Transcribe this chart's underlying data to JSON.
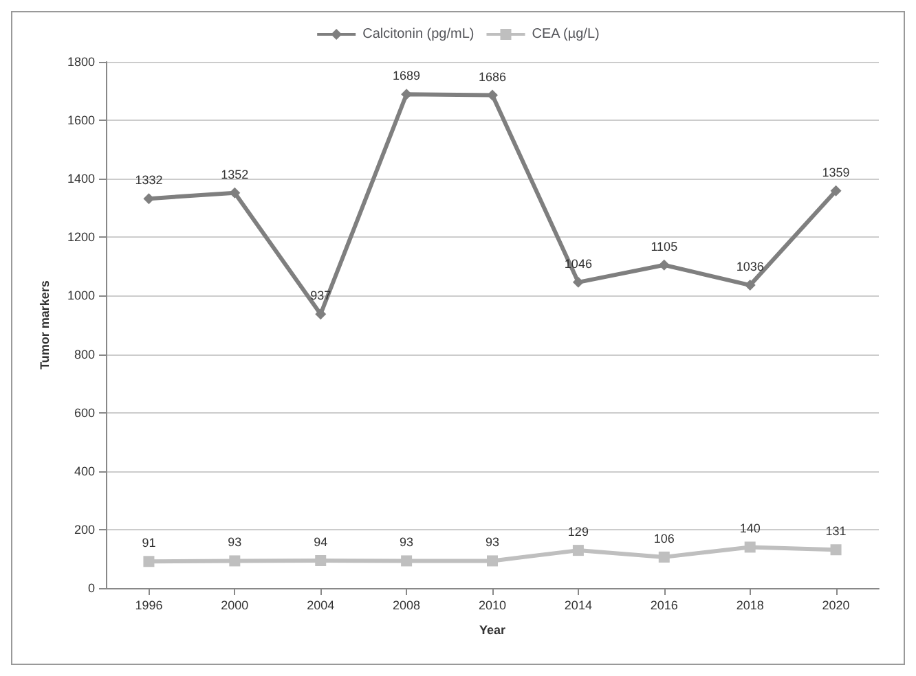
{
  "chart_data": {
    "type": "line",
    "xlabel": "Year",
    "ylabel": "Tumor markers",
    "categories": [
      "1996",
      "2000",
      "2004",
      "2008",
      "2010",
      "2014",
      "2016",
      "2018",
      "2020"
    ],
    "series": [
      {
        "name": "Calcitonin (pg/mL)",
        "color": "#7f7f7f",
        "marker": "diamond",
        "values": [
          1332,
          1352,
          937,
          1689,
          1686,
          1046,
          1105,
          1036,
          1359
        ]
      },
      {
        "name": "CEA (µg/L)",
        "color": "#bfbfbf",
        "marker": "square",
        "values": [
          91,
          93,
          94,
          93,
          93,
          129,
          106,
          140,
          131
        ]
      }
    ],
    "ylim": [
      0,
      1800
    ],
    "yticks": [
      0,
      200,
      400,
      600,
      800,
      1000,
      1200,
      1400,
      1600,
      1800
    ],
    "grid": "y",
    "legend": "top",
    "data_labels": true,
    "line_style": "solid"
  }
}
